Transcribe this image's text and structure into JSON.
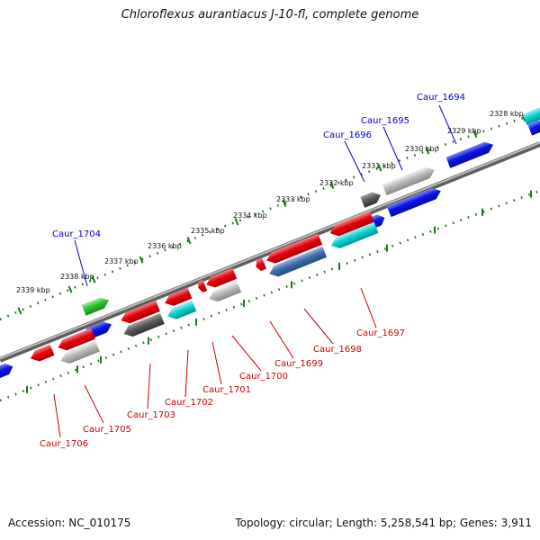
{
  "title": "Chloroflexus aurantiacus J-10-fl, complete genome",
  "footer": {
    "accession": "Accession: NC_010175",
    "summary": "Topology: circular; Length: 5,258,541 bp; Genes: 3,911"
  },
  "ticks": [
    "2328 kbp",
    "2329 kbp",
    "2330 kbp",
    "2331 kbp",
    "2332 kbp",
    "2333 kbp",
    "2334 kbp",
    "2335 kbp",
    "2336 kbp",
    "2337 kbp",
    "2338 kbp",
    "2339 kbp"
  ],
  "colors": {
    "forward_label": "#0000cc",
    "reverse_label": "#cc0000",
    "tick": "#1a7a1a",
    "backbone": "#808080",
    "red": "#e8000b",
    "blue": "#0a14e6",
    "green": "#2ec42e",
    "cyan": "#0ad4d4",
    "gray": "#b0b0b0",
    "dark_gray": "#5a5a5a",
    "steel_blue": "#3f6fb0"
  },
  "genes_top": [
    {
      "name": "Caur_1694",
      "color": "blue"
    },
    {
      "name": "Caur_1695",
      "color": "gray"
    },
    {
      "name": "Caur_1696",
      "color": "dark_gray"
    },
    {
      "name": "Caur_1704",
      "color": "green"
    }
  ],
  "genes_bottom": [
    {
      "name": "Caur_1697",
      "color": "cyan"
    },
    {
      "name": "Caur_1698",
      "color": "steel_blue"
    },
    {
      "name": "Caur_1699",
      "color": "red"
    },
    {
      "name": "Caur_1700",
      "color": "gray"
    },
    {
      "name": "Caur_1701",
      "color": "red"
    },
    {
      "name": "Caur_1702",
      "color": "cyan"
    },
    {
      "name": "Caur_1703",
      "color": "dark_gray"
    },
    {
      "name": "Caur_1705",
      "color": "gray"
    },
    {
      "name": "Caur_1706",
      "color": "red"
    }
  ]
}
